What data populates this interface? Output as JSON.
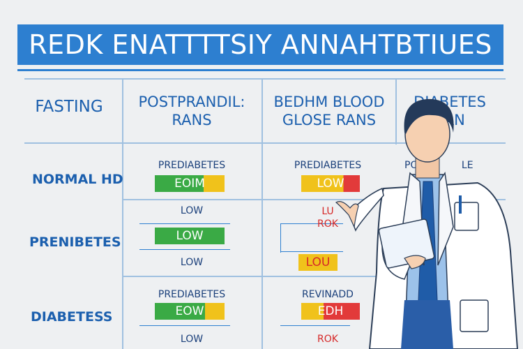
{
  "title": "REDK ENATTTTSIY ANNAHTBTIUES",
  "headers": {
    "col1": "FASTING",
    "col2_line1": "POSTPRANDIL:",
    "col2_line2": "RANS",
    "col3_line1": "BEDHM BLOOD",
    "col3_line2": "GLOSE RANS",
    "col4_line1": "DIABETES",
    "col4_line2": "RAN"
  },
  "rows": {
    "r1_label": "NORMAL HD",
    "r2_label": "PRENIBETES",
    "r3_label": "DIABETESS"
  },
  "cells": {
    "r1c2_top": "PREDIABETES",
    "r1c2_pill": "EOIM",
    "r1c3_top": "PREDIABETES",
    "r1c3_pill": "LOW",
    "r1c4_top": "PO",
    "r1c4_top_b": "LE",
    "r2c2_top": "LOW",
    "r2c2_pill": "LOW",
    "r2c2_bottom": "LOW",
    "r2c3_top": "LU",
    "r2c3_mid": "ROK",
    "r2c3_pill": "LOU",
    "r3c2_top": "PREDIABETES",
    "r3c2_pill": "EOW",
    "r3c2_bottom": "LOW",
    "r3c3_top": "REVINADD",
    "r3c3_pill": "EDH",
    "r3c3_bottom": "ROK"
  },
  "colors": {
    "banner": "#2d7fd0",
    "green": "#3aaa45",
    "yellow": "#f0c21b",
    "red": "#e23a3a",
    "coat": "#ffffff",
    "tie": "#1f5ca8"
  }
}
